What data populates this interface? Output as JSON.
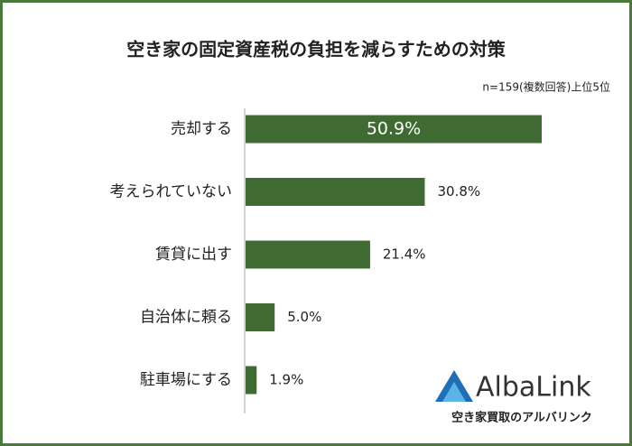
{
  "chart_data": {
    "type": "barh",
    "title": "空き家の固定資産税の負担を減らすための対策",
    "subtitle": "n=159(複数回答)上位5位",
    "categories": [
      "売却する",
      "考えられていない",
      "賃貸に出す",
      "自治体に頼る",
      "駐車場にする"
    ],
    "values": [
      50.9,
      30.8,
      21.4,
      5.0,
      1.9
    ],
    "value_labels": [
      "50.9%",
      "30.8%",
      "21.4%",
      "5.0%",
      "1.9%"
    ],
    "color": "#3f6b32"
  },
  "branding": {
    "logo": "AlbaLink",
    "tagline": "空き家買取のアルバリンク"
  }
}
